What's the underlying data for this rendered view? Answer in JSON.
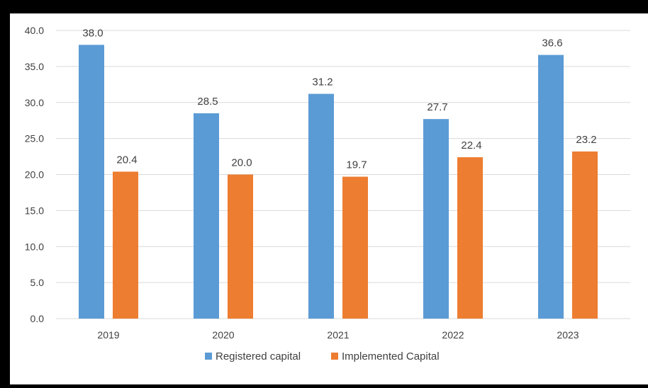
{
  "colors": {
    "registered": "#5b9bd5",
    "implemented": "#ed7d31",
    "grid": "#d9d9d9",
    "text": "#404040"
  },
  "chart_data": {
    "type": "bar",
    "title": "",
    "xlabel": "",
    "ylabel": "",
    "categories": [
      "2019",
      "2020",
      "2021",
      "2022",
      "2023"
    ],
    "series": [
      {
        "name": "Registered capital",
        "values": [
          38.0,
          28.5,
          31.2,
          27.7,
          36.6
        ]
      },
      {
        "name": "Implemented Capital",
        "values": [
          20.4,
          20.0,
          19.7,
          22.4,
          23.2
        ]
      }
    ],
    "ylim": [
      0,
      40
    ],
    "yticks": [
      "0.0",
      "5.0",
      "10.0",
      "15.0",
      "20.0",
      "25.0",
      "30.0",
      "35.0",
      "40.0"
    ],
    "grid": true,
    "legend": "bottom"
  }
}
